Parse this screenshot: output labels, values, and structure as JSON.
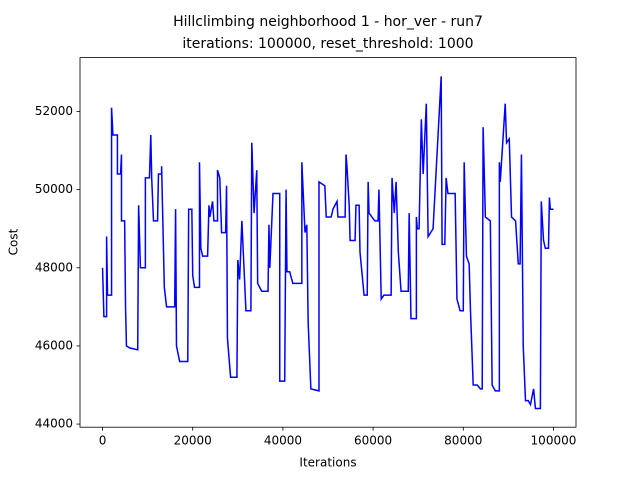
{
  "chart_data": {
    "type": "line",
    "title": "Hillclimbing neighborhood 1 - hor_ver - run7",
    "subtitle": "iterations: 100000, reset_threshold: 1000",
    "xlabel": "Iterations",
    "ylabel": "Cost",
    "xlim": [
      -5000,
      105000
    ],
    "ylim": [
      43920,
      53380
    ],
    "xticks": [
      0,
      20000,
      40000,
      60000,
      80000,
      100000
    ],
    "yticks": [
      44000,
      46000,
      48000,
      50000,
      52000
    ],
    "x": [
      0,
      300,
      900,
      900,
      1100,
      2000,
      2000,
      2300,
      3300,
      3300,
      4000,
      4200,
      4200,
      4900,
      5100,
      5300,
      6000,
      7800,
      8000,
      8400,
      9500,
      9500,
      10400,
      10700,
      10900,
      11300,
      12200,
      12400,
      13100,
      13100,
      13700,
      14200,
      16000,
      16200,
      16400,
      17100,
      18900,
      19100,
      19800,
      20000,
      20400,
      21500,
      21500,
      21800,
      22200,
      23300,
      23600,
      23800,
      24400,
      24700,
      25500,
      25500,
      26000,
      26400,
      27300,
      27500,
      27700,
      28400,
      29800,
      30000,
      30400,
      30900,
      31800,
      32900,
      33100,
      33600,
      34200,
      34400,
      35300,
      36700,
      36900,
      37100,
      37800,
      39300,
      39300,
      40400,
      40700,
      40900,
      41500,
      42200,
      44200,
      44200,
      44900,
      45300,
      45600,
      46200,
      48000,
      48000,
      49300,
      49600,
      50700,
      51100,
      52000,
      52200,
      53800,
      54000,
      54200,
      54700,
      54900,
      56000,
      56200,
      56900,
      57100,
      58000,
      58700,
      58900,
      59100,
      60400,
      61100,
      61300,
      61800,
      62400,
      64000,
      64200,
      64700,
      65100,
      65600,
      66200,
      67800,
      68000,
      68400,
      69600,
      69600,
      69800,
      70200,
      70700,
      71100,
      71800,
      72200,
      73300,
      75100,
      75300,
      75900,
      76200,
      76600,
      78200,
      78600,
      79300,
      80000,
      80200,
      80700,
      81300,
      81600,
      82200,
      83100,
      83800,
      84200,
      84400,
      84900,
      86000,
      86400,
      87100,
      88000,
      88000,
      88200,
      89300,
      89600,
      90200,
      90700,
      91600,
      92200,
      92600,
      92900,
      93300,
      93800,
      94400,
      94900,
      95600,
      96000,
      97100,
      97300,
      97800,
      98200,
      98900,
      99100,
      99300,
      100000
    ],
    "series": [
      {
        "color": "#0000ff",
        "values": [
          48000,
          46750,
          46750,
          48800,
          47300,
          47300,
          52100,
          51400,
          51400,
          50400,
          50400,
          50900,
          49200,
          49200,
          47000,
          46000,
          45950,
          45900,
          49600,
          48000,
          48000,
          50300,
          50300,
          51400,
          50300,
          49200,
          49200,
          50400,
          50400,
          50600,
          47500,
          47000,
          47000,
          49500,
          46000,
          45600,
          45600,
          49500,
          49500,
          47800,
          47500,
          47500,
          50700,
          48500,
          48300,
          48300,
          49600,
          49300,
          49700,
          49200,
          49200,
          50500,
          50300,
          48900,
          48900,
          50100,
          46200,
          45200,
          45200,
          48200,
          47700,
          49200,
          46900,
          46900,
          51200,
          49400,
          50500,
          47600,
          47400,
          47400,
          49100,
          48000,
          49900,
          49900,
          45100,
          45100,
          50000,
          47900,
          47900,
          47600,
          47600,
          50700,
          48900,
          49100,
          46600,
          44900,
          44850,
          50200,
          50100,
          49300,
          49300,
          49500,
          49700,
          49300,
          49300,
          50900,
          50600,
          49600,
          48700,
          48700,
          49600,
          49600,
          48400,
          47300,
          47300,
          50200,
          49400,
          49200,
          49200,
          50000,
          47200,
          47300,
          47300,
          50300,
          49400,
          50200,
          48400,
          47400,
          47400,
          49400,
          46700,
          46700,
          49300,
          49000,
          49000,
          51800,
          50400,
          52200,
          48800,
          49000,
          52900,
          48600,
          48600,
          50300,
          49900,
          49900,
          47200,
          46900,
          46900,
          50700,
          48300,
          48100,
          46900,
          45000,
          45000,
          44900,
          44900,
          51600,
          49300,
          49200,
          45000,
          44850,
          44850,
          50700,
          50200,
          52200,
          51200,
          51300,
          49300,
          49200,
          48100,
          48100,
          50900,
          46000,
          44600,
          44600,
          44500,
          44900,
          44400,
          44400,
          49700,
          48700,
          48500,
          48500,
          49800,
          49500,
          49500
        ]
      }
    ]
  }
}
